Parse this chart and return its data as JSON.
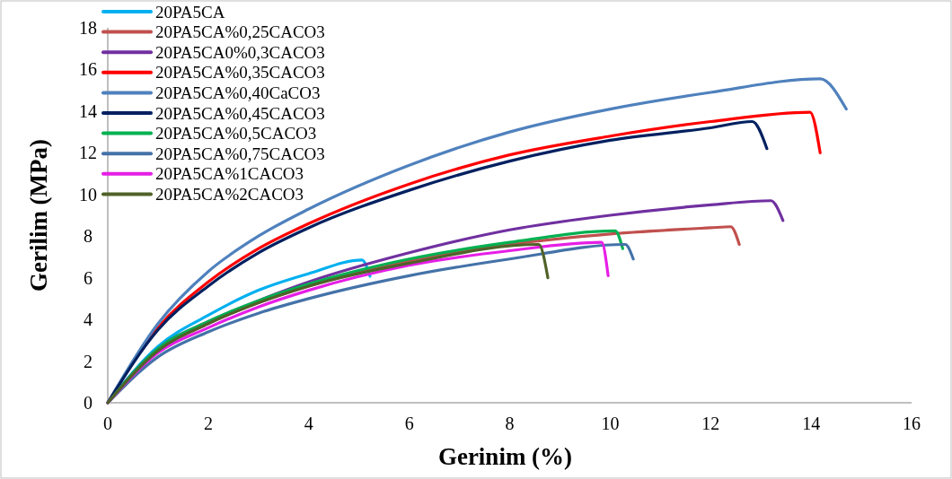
{
  "chart_data": {
    "type": "line",
    "xlabel": "Gerinim (%)",
    "ylabel": "Gerilim (MPa)",
    "xlim": [
      0,
      16
    ],
    "xticks": [
      0,
      2,
      4,
      6,
      8,
      10,
      12,
      14,
      16
    ],
    "ylim": [
      0,
      18
    ],
    "yticks": [
      0,
      2,
      4,
      6,
      8,
      10,
      12,
      14,
      16,
      18
    ],
    "grid": false,
    "legend": "top left",
    "marker": "none",
    "line_style": "solid",
    "series": [
      {
        "name": "20PA5CA",
        "color": "#00b0f0",
        "x": [
          0,
          1,
          2,
          3,
          4,
          5.06,
          5.22
        ],
        "values": [
          0,
          2.7,
          4.2,
          5.4,
          6.2,
          6.85,
          6.07
        ]
      },
      {
        "name": "20PA5CA%0,25CACO3",
        "color": "#c0504d",
        "x": [
          0,
          1,
          2,
          3,
          4,
          6,
          8,
          10,
          12,
          12.4,
          12.57
        ],
        "values": [
          0,
          2.5,
          3.8,
          4.8,
          5.6,
          6.8,
          7.6,
          8.1,
          8.4,
          8.45,
          7.6
        ]
      },
      {
        "name": "20PA5CA0%0,3CACO3",
        "color": "#7030a0",
        "x": [
          0,
          1,
          2,
          3,
          4,
          6,
          8,
          10,
          12,
          13.2,
          13.44
        ],
        "values": [
          0,
          2.6,
          3.9,
          4.9,
          5.8,
          7.2,
          8.3,
          9,
          9.5,
          9.7,
          8.75
        ]
      },
      {
        "name": "20PA5CA%0,35CACO3",
        "color": "#ff0000",
        "x": [
          0,
          1,
          2,
          3,
          4,
          6,
          8,
          10,
          12,
          13.98,
          14.18
        ],
        "values": [
          0,
          3.6,
          5.8,
          7.4,
          8.6,
          10.5,
          11.9,
          12.8,
          13.5,
          13.95,
          12
        ]
      },
      {
        "name": "20PA5CA%0,40CaCO3",
        "color": "#4f81bd",
        "x": [
          0,
          1,
          2,
          3,
          4,
          6,
          8,
          10,
          12,
          14.18,
          14.7
        ],
        "values": [
          0,
          3.8,
          6.3,
          8,
          9.3,
          11.4,
          13,
          14.1,
          14.9,
          15.55,
          14.1
        ]
      },
      {
        "name": "20PA5CA%0,45CACO3",
        "color": "#002060",
        "x": [
          0,
          1,
          2,
          3,
          4,
          6,
          8,
          10,
          12,
          12.83,
          13.12
        ],
        "values": [
          0,
          3.5,
          5.6,
          7.2,
          8.4,
          10.2,
          11.6,
          12.6,
          13.2,
          13.5,
          12.2
        ]
      },
      {
        "name": "20PA5CA%0,5CACO3",
        "color": "#00b050",
        "x": [
          0,
          1,
          2,
          3,
          4,
          6,
          8,
          10.1,
          10.25
        ],
        "values": [
          0,
          2.6,
          3.9,
          4.9,
          5.7,
          6.9,
          7.7,
          8.25,
          7.4
        ]
      },
      {
        "name": "20PA5CA%0,75CACO3",
        "color": "#4472a8",
        "x": [
          0,
          1,
          2,
          3,
          4,
          6,
          8,
          10.3,
          10.46
        ],
        "values": [
          0,
          2.2,
          3.4,
          4.3,
          5,
          6.1,
          6.9,
          7.6,
          6.9
        ]
      },
      {
        "name": "20PA5CA%1CACO3",
        "color": "#e61ee6",
        "x": [
          0,
          1,
          2,
          3,
          4,
          6,
          8,
          9.83,
          9.96
        ],
        "values": [
          0,
          2.4,
          3.6,
          4.6,
          5.4,
          6.6,
          7.3,
          7.7,
          6.1
        ]
      },
      {
        "name": "20PA5CA%2CACO3",
        "color": "#4f6228",
        "x": [
          0,
          1,
          2,
          3,
          4,
          6,
          8.58,
          8.76
        ],
        "values": [
          0,
          2.5,
          3.8,
          4.8,
          5.6,
          6.7,
          7.6,
          6
        ]
      }
    ]
  }
}
